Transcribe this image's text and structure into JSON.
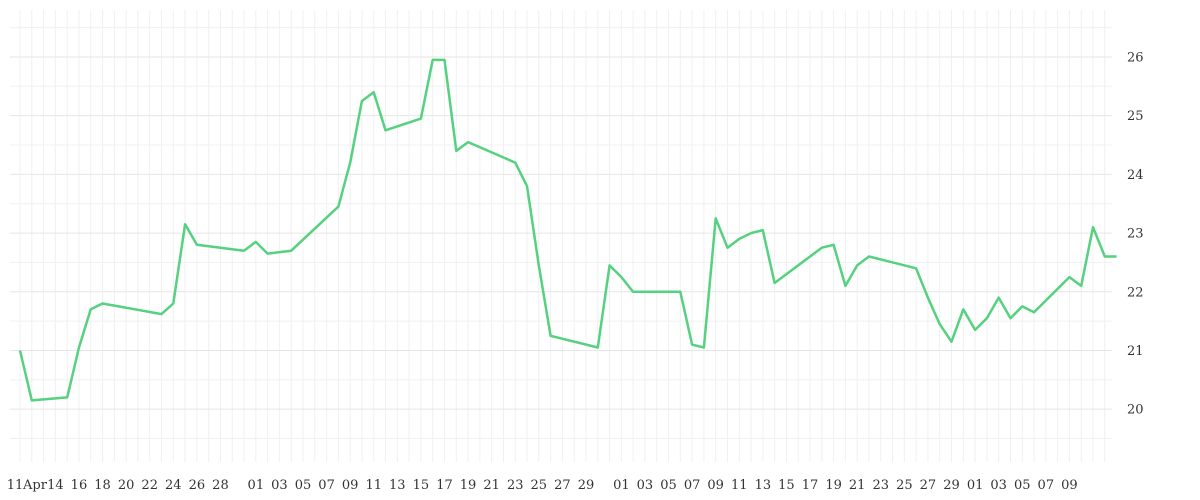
{
  "chart_data": {
    "type": "line",
    "title": "",
    "xlabel": "",
    "ylabel": "",
    "grid": true,
    "y_axis_side": "right",
    "ylim": [
      19.1,
      26.8
    ],
    "x_range": [
      "2024-04-11",
      "2024-06-10"
    ],
    "yticks": [
      20,
      21,
      22,
      23,
      24,
      25,
      26
    ],
    "x_tick_labels": [
      {
        "date": "2024-04-11",
        "label": "11"
      },
      {
        "date": "2024-04-12",
        "label": "Apr"
      },
      {
        "date": "2024-04-14",
        "label": "14"
      },
      {
        "date": "2024-04-16",
        "label": "16"
      },
      {
        "date": "2024-04-18",
        "label": "18"
      },
      {
        "date": "2024-04-20",
        "label": "20"
      },
      {
        "date": "2024-04-22",
        "label": "22"
      },
      {
        "date": "2024-04-24",
        "label": "24"
      },
      {
        "date": "2024-04-26",
        "label": "26"
      },
      {
        "date": "2024-04-28",
        "label": "28"
      },
      {
        "date": "2024-05-01",
        "label": "01"
      },
      {
        "date": "2024-05-03",
        "label": "03"
      },
      {
        "date": "2024-05-05",
        "label": "05"
      },
      {
        "date": "2024-05-07",
        "label": "07"
      },
      {
        "date": "2024-05-09",
        "label": "09"
      },
      {
        "date": "2024-05-11",
        "label": "11"
      },
      {
        "date": "2024-05-13",
        "label": "13"
      },
      {
        "date": "2024-05-15",
        "label": "15"
      },
      {
        "date": "2024-05-17",
        "label": "17"
      },
      {
        "date": "2024-05-19",
        "label": "19"
      },
      {
        "date": "2024-05-21",
        "label": "21"
      },
      {
        "date": "2024-05-23",
        "label": "23"
      },
      {
        "date": "2024-05-25",
        "label": "25"
      },
      {
        "date": "2024-05-27",
        "label": "27"
      },
      {
        "date": "2024-05-29",
        "label": "29"
      },
      {
        "date": "2024-06-01",
        "label": "01"
      },
      {
        "date": "2024-06-03",
        "label": "03"
      },
      {
        "date": "2024-06-05",
        "label": "05"
      },
      {
        "date": "2024-06-07",
        "label": "07"
      },
      {
        "date": "2024-06-09",
        "label": "09"
      }
    ],
    "series": [
      {
        "color": "#55d17f",
        "x": [
          "2024-04-11",
          "2024-04-12",
          "2024-04-15",
          "2024-04-16",
          "2024-04-17",
          "2024-04-18",
          "2024-04-23",
          "2024-04-24",
          "2024-04-25",
          "2024-04-26",
          "2024-04-30",
          "2024-05-01",
          "2024-05-02",
          "2024-05-04",
          "2024-05-08",
          "2024-05-09",
          "2024-05-10",
          "2024-05-11",
          "2024-05-12",
          "2024-05-15",
          "2024-05-16",
          "2024-05-17",
          "2024-05-18",
          "2024-05-19",
          "2024-05-23",
          "2024-05-24",
          "2024-05-25",
          "2024-05-26",
          "2024-05-30",
          "2024-05-31",
          "2024-06-01",
          "2024-06-02",
          "2024-06-06",
          "2024-06-07",
          "2024-06-08",
          "2024-06-09",
          "2024-06-10"
        ],
        "y": [
          21.0,
          20.15,
          20.2,
          21.05,
          21.7,
          21.8,
          21.62,
          21.8,
          23.15,
          22.8,
          22.7,
          22.85,
          22.65,
          22.7,
          23.45,
          24.2,
          25.25,
          25.4,
          24.75,
          24.95,
          25.95,
          25.95,
          24.4,
          24.55,
          24.2,
          23.8,
          22.45,
          21.25,
          21.05,
          22.45,
          22.25,
          22.0,
          22.0,
          21.1,
          21.05,
          23.25,
          22.75
        ]
      }
    ]
  }
}
